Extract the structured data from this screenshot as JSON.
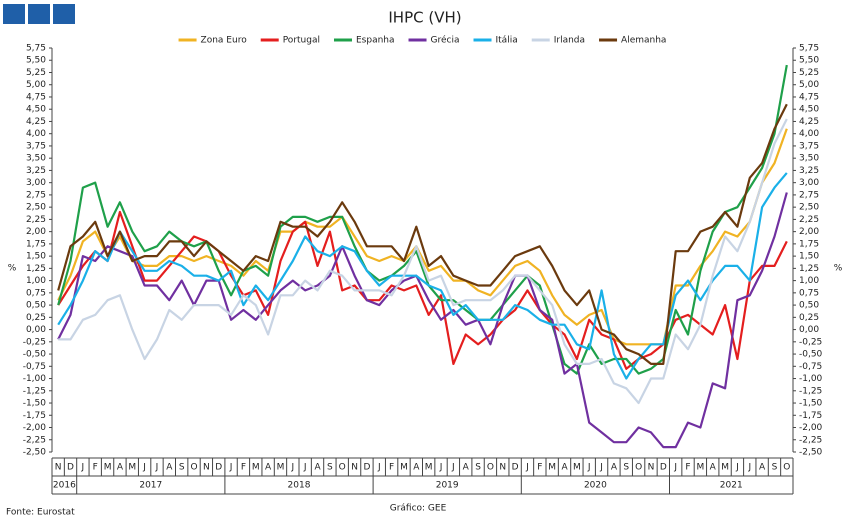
{
  "chart_data": {
    "type": "line",
    "title": "IHPC (VH)",
    "ylabel": "%",
    "y2label": "%",
    "source": "Fonte: Eurostat",
    "credit": "Gráfico: GEE",
    "grid": false,
    "legend": "top",
    "categories": [
      "N",
      "D",
      "J",
      "F",
      "M",
      "A",
      "M",
      "J",
      "J",
      "A",
      "S",
      "O",
      "N",
      "D",
      "J",
      "F",
      "M",
      "A",
      "M",
      "J",
      "J",
      "A",
      "S",
      "O",
      "N",
      "D",
      "J",
      "F",
      "M",
      "A",
      "M",
      "J",
      "J",
      "A",
      "S",
      "O",
      "N",
      "D",
      "J",
      "F",
      "M",
      "A",
      "M",
      "J",
      "J",
      "A",
      "S",
      "O",
      "N",
      "D",
      "J",
      "F",
      "M",
      "A",
      "M",
      "J",
      "J",
      "A",
      "S",
      "O"
    ],
    "years": [
      "2016",
      "2017",
      "2018",
      "2019",
      "2020",
      "2021"
    ],
    "series": [
      {
        "name": "Zona Euro",
        "color": "#f0b323",
        "values": [
          0.6,
          1.1,
          1.8,
          2.0,
          1.5,
          1.9,
          1.4,
          1.3,
          1.3,
          1.5,
          1.5,
          1.4,
          1.5,
          1.4,
          1.3,
          1.1,
          1.4,
          1.2,
          2.0,
          2.0,
          2.2,
          2.1,
          2.1,
          2.3,
          1.9,
          1.5,
          1.4,
          1.5,
          1.4,
          1.7,
          1.2,
          1.3,
          1.0,
          1.0,
          0.8,
          0.7,
          1.0,
          1.3,
          1.4,
          1.2,
          0.7,
          0.3,
          0.1,
          0.3,
          0.4,
          -0.2,
          -0.3,
          -0.3,
          -0.3,
          -0.3,
          0.9,
          0.9,
          1.3,
          1.6,
          2.0,
          1.9,
          2.2,
          3.0,
          3.4,
          4.1
        ]
      },
      {
        "name": "Portugal",
        "color": "#e41e1e",
        "values": [
          0.5,
          0.9,
          1.3,
          1.6,
          1.4,
          2.4,
          1.7,
          1.0,
          1.0,
          1.3,
          1.6,
          1.9,
          1.8,
          1.6,
          1.1,
          0.7,
          0.8,
          0.3,
          1.4,
          2.0,
          2.2,
          1.3,
          2.0,
          0.8,
          0.9,
          0.6,
          0.6,
          0.9,
          0.8,
          0.9,
          0.3,
          0.7,
          -0.7,
          -0.1,
          -0.3,
          -0.1,
          0.2,
          0.4,
          0.8,
          0.4,
          0.1,
          -0.1,
          -0.6,
          0.2,
          -0.1,
          -0.2,
          -0.8,
          -0.6,
          -0.5,
          -0.3,
          0.2,
          0.3,
          0.1,
          -0.1,
          0.5,
          -0.6,
          1.0,
          1.3,
          1.3,
          1.8
        ]
      },
      {
        "name": "Espanha",
        "color": "#1fa04a",
        "values": [
          0.5,
          1.4,
          2.9,
          3.0,
          2.1,
          2.6,
          2.0,
          1.6,
          1.7,
          2.0,
          1.8,
          1.7,
          1.8,
          1.2,
          0.7,
          1.2,
          1.3,
          1.1,
          2.1,
          2.3,
          2.3,
          2.2,
          2.3,
          2.3,
          1.7,
          1.2,
          1.0,
          1.1,
          1.3,
          1.6,
          0.9,
          0.6,
          0.6,
          0.4,
          0.2,
          0.2,
          0.5,
          0.8,
          1.1,
          0.9,
          0.1,
          -0.7,
          -0.9,
          -0.3,
          -0.7,
          -0.6,
          -0.6,
          -0.9,
          -0.8,
          -0.6,
          0.4,
          -0.1,
          1.2,
          2.0,
          2.4,
          2.5,
          2.9,
          3.3,
          4.0,
          5.4
        ]
      },
      {
        "name": "Grécia",
        "color": "#7030a0",
        "values": [
          -0.2,
          0.3,
          1.5,
          1.4,
          1.7,
          1.6,
          1.5,
          0.9,
          0.9,
          0.6,
          1.0,
          0.5,
          1.0,
          1.0,
          0.2,
          0.4,
          0.2,
          0.5,
          0.8,
          1.0,
          0.8,
          0.9,
          1.1,
          1.7,
          1.1,
          0.6,
          0.5,
          0.8,
          1.0,
          1.1,
          0.6,
          0.2,
          0.4,
          0.1,
          0.2,
          -0.3,
          0.5,
          1.1,
          1.1,
          0.4,
          0.2,
          -0.9,
          -0.7,
          -1.9,
          -2.1,
          -2.3,
          -2.3,
          -2.0,
          -2.1,
          -2.4,
          -2.4,
          -1.9,
          -2.0,
          -1.1,
          -1.2,
          0.6,
          0.7,
          1.2,
          1.9,
          2.8
        ]
      },
      {
        "name": "Itália",
        "color": "#1ab0e8",
        "values": [
          0.1,
          0.5,
          1.0,
          1.6,
          1.4,
          2.0,
          1.6,
          1.2,
          1.2,
          1.4,
          1.3,
          1.1,
          1.1,
          1.0,
          1.2,
          0.5,
          0.9,
          0.6,
          1.0,
          1.4,
          1.9,
          1.6,
          1.5,
          1.7,
          1.6,
          1.2,
          0.9,
          1.1,
          1.1,
          1.1,
          0.9,
          0.8,
          0.3,
          0.5,
          0.2,
          0.2,
          0.2,
          0.5,
          0.4,
          0.2,
          0.1,
          0.1,
          -0.3,
          -0.4,
          0.8,
          -0.5,
          -1.0,
          -0.6,
          -0.3,
          -0.3,
          0.7,
          1.0,
          0.6,
          1.0,
          1.3,
          1.3,
          1.0,
          2.5,
          2.9,
          3.2
        ]
      },
      {
        "name": "Irlanda",
        "color": "#c8d4e4",
        "values": [
          -0.2,
          -0.2,
          0.2,
          0.3,
          0.6,
          0.7,
          0.0,
          -0.6,
          -0.2,
          0.4,
          0.2,
          0.5,
          0.5,
          0.5,
          0.3,
          0.7,
          0.5,
          -0.1,
          0.7,
          0.7,
          1.0,
          0.8,
          1.2,
          1.1,
          0.8,
          0.8,
          0.8,
          0.7,
          1.1,
          1.7,
          1.0,
          1.1,
          0.5,
          0.6,
          0.6,
          0.6,
          0.8,
          1.1,
          1.1,
          0.8,
          0.5,
          -0.3,
          -0.7,
          -0.7,
          -0.6,
          -1.1,
          -1.2,
          -1.5,
          -1.0,
          -1.0,
          -0.1,
          -0.4,
          0.1,
          1.1,
          1.9,
          1.6,
          2.2,
          3.0,
          3.8,
          4.3
        ]
      },
      {
        "name": "Alemanha",
        "color": "#6b3a0e",
        "values": [
          0.8,
          1.7,
          1.9,
          2.2,
          1.5,
          2.0,
          1.4,
          1.5,
          1.5,
          1.8,
          1.8,
          1.5,
          1.8,
          1.6,
          1.4,
          1.2,
          1.5,
          1.4,
          2.2,
          2.1,
          2.1,
          1.9,
          2.2,
          2.6,
          2.2,
          1.7,
          1.7,
          1.7,
          1.4,
          2.1,
          1.3,
          1.5,
          1.1,
          1.0,
          0.9,
          0.9,
          1.2,
          1.5,
          1.6,
          1.7,
          1.3,
          0.8,
          0.5,
          0.8,
          0.0,
          -0.1,
          -0.4,
          -0.5,
          -0.7,
          -0.7,
          1.6,
          1.6,
          2.0,
          2.1,
          2.4,
          2.1,
          3.1,
          3.4,
          4.1,
          4.6
        ]
      }
    ],
    "ylim": [
      -2.5,
      5.75
    ],
    "yticks": [
      {
        "value": 5.75,
        "label": "5,75"
      },
      {
        "value": 5.5,
        "label": "5,50"
      },
      {
        "value": 5.25,
        "label": "5,25"
      },
      {
        "value": 5.0,
        "label": "5,00"
      },
      {
        "value": 4.75,
        "label": "4,75"
      },
      {
        "value": 4.5,
        "label": "4,50"
      },
      {
        "value": 4.25,
        "label": "4,25"
      },
      {
        "value": 4.0,
        "label": "4,00"
      },
      {
        "value": 3.75,
        "label": "3,75"
      },
      {
        "value": 3.5,
        "label": "3,50"
      },
      {
        "value": 3.25,
        "label": "3,25"
      },
      {
        "value": 3.0,
        "label": "3,00"
      },
      {
        "value": 2.75,
        "label": "2,75"
      },
      {
        "value": 2.5,
        "label": "2,50"
      },
      {
        "value": 2.25,
        "label": "2,25"
      },
      {
        "value": 2.0,
        "label": "2,00"
      },
      {
        "value": 1.75,
        "label": "1,75"
      },
      {
        "value": 1.5,
        "label": "1,50"
      },
      {
        "value": 1.25,
        "label": "1,25"
      },
      {
        "value": 1.0,
        "label": "1,00"
      },
      {
        "value": 0.75,
        "label": "0,75"
      },
      {
        "value": 0.5,
        "label": "0,50"
      },
      {
        "value": 0.25,
        "label": "0,25"
      },
      {
        "value": 0,
        "label": "0,00"
      },
      {
        "value": -0.25,
        "label": "-0,25"
      },
      {
        "value": -0.5,
        "label": "-0,50"
      },
      {
        "value": -0.75,
        "label": "-0,75"
      },
      {
        "value": -1.0,
        "label": "-1,00"
      },
      {
        "value": -1.25,
        "label": "-1,25"
      },
      {
        "value": -1.5,
        "label": "-1,50"
      },
      {
        "value": -1.75,
        "label": "-1,75"
      },
      {
        "value": -2.0,
        "label": "-2,00"
      },
      {
        "value": -2.25,
        "label": "-2,25"
      },
      {
        "value": -2.5,
        "label": "-2,50"
      }
    ],
    "y2lim": [
      -2.5,
      5.75
    ],
    "y2ticks": [
      {
        "value": 5.75,
        "label": "5,75"
      },
      {
        "value": 5.5,
        "label": "5,50"
      },
      {
        "value": 5.25,
        "label": "5,25"
      },
      {
        "value": 5.0,
        "label": "5,00"
      },
      {
        "value": 4.75,
        "label": "4,75"
      },
      {
        "value": 4.5,
        "label": "4,50"
      },
      {
        "value": 4.25,
        "label": "4,25"
      },
      {
        "value": 4.0,
        "label": "4,00"
      },
      {
        "value": 3.75,
        "label": "3,75"
      },
      {
        "value": 3.5,
        "label": "3,50"
      },
      {
        "value": 3.25,
        "label": "3,25"
      },
      {
        "value": 3.0,
        "label": "3,00"
      },
      {
        "value": 2.75,
        "label": "2,75"
      },
      {
        "value": 2.5,
        "label": "2,50"
      },
      {
        "value": 2.25,
        "label": "2,25"
      },
      {
        "value": 2.0,
        "label": "2,00"
      },
      {
        "value": 1.75,
        "label": "1,75"
      },
      {
        "value": 1.5,
        "label": "1,50"
      },
      {
        "value": 1.25,
        "label": "1,25"
      },
      {
        "value": 1.0,
        "label": "1,00"
      },
      {
        "value": 0.75,
        "label": "0,75"
      },
      {
        "value": 0.5,
        "label": "0,50"
      },
      {
        "value": 0.25,
        "label": "0,25"
      },
      {
        "value": 0,
        "label": "0,00"
      },
      {
        "value": -0.25,
        "label": "-0,25"
      },
      {
        "value": -0.5,
        "label": "-0,50"
      },
      {
        "value": -0.75,
        "label": "-0,75"
      },
      {
        "value": -1.0,
        "label": "-1,00"
      },
      {
        "value": -1.25,
        "label": "-1,25"
      },
      {
        "value": -1.5,
        "label": "-1,50"
      },
      {
        "value": -1.75,
        "label": "-1,75"
      },
      {
        "value": -2.0,
        "label": "-2,00"
      },
      {
        "value": -2.25,
        "label": "-2,25"
      },
      {
        "value": -2.5,
        "label": "-2,50"
      }
    ]
  }
}
